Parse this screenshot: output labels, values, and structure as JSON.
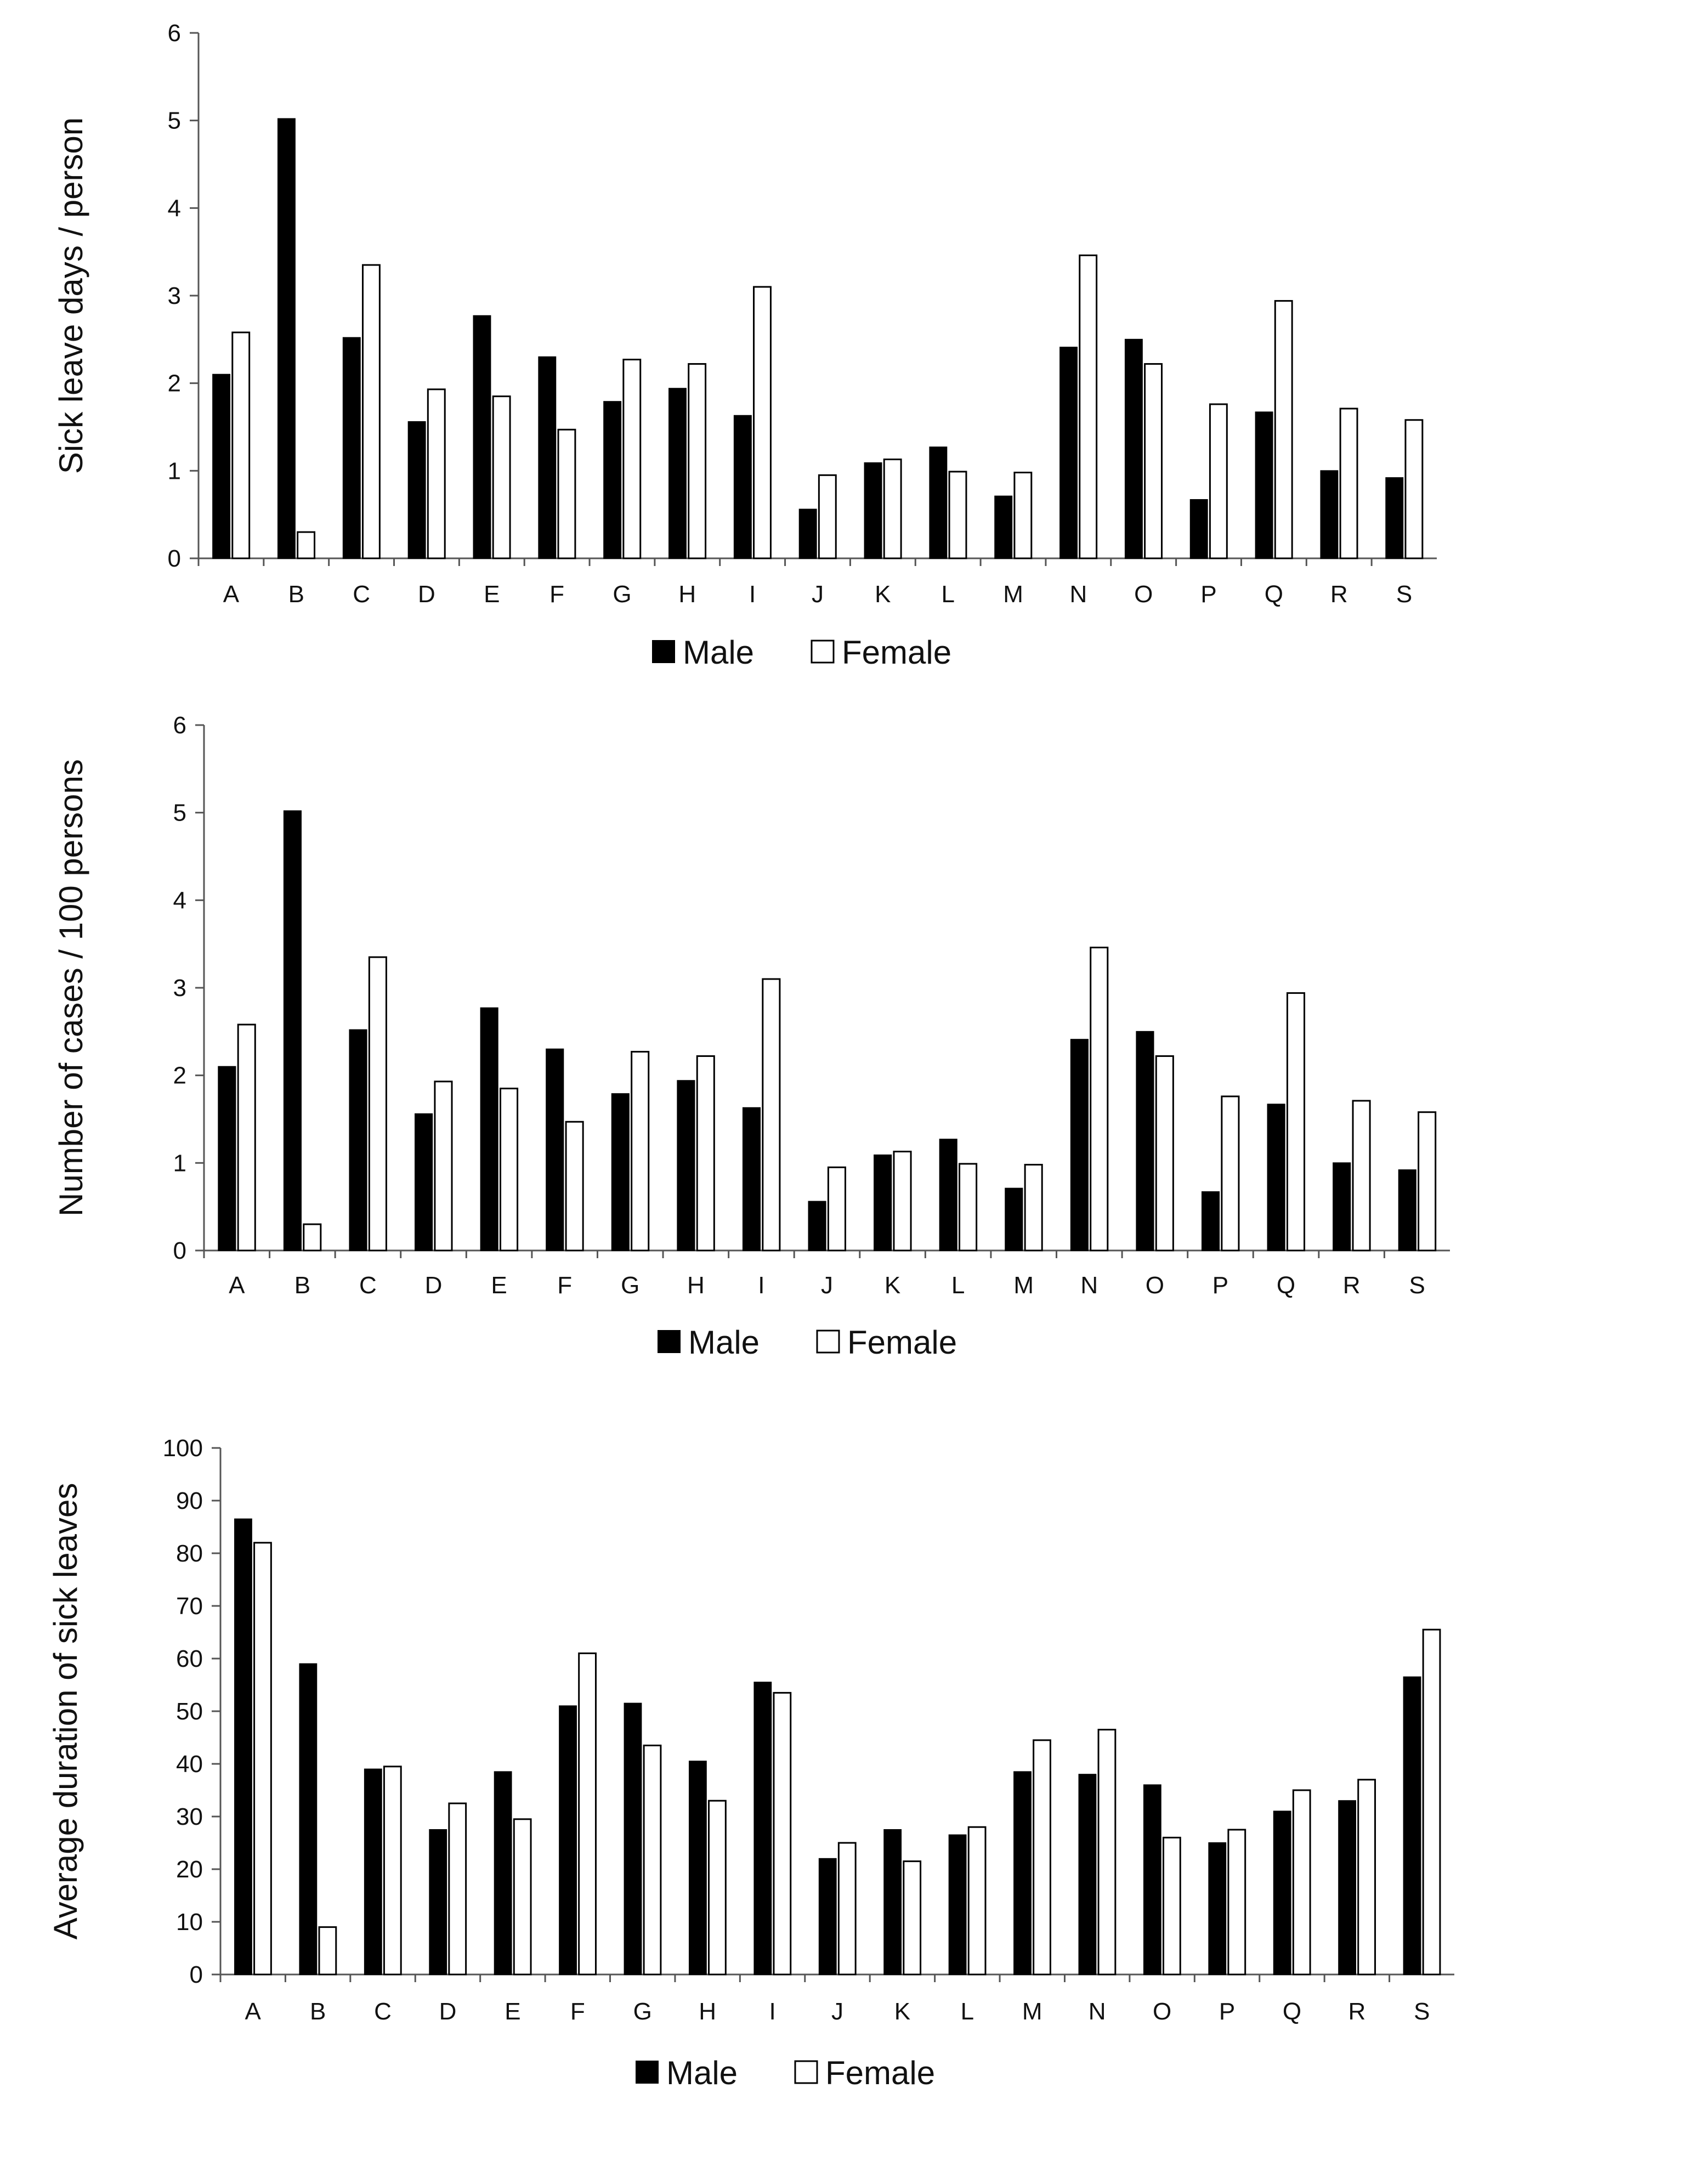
{
  "colors": {
    "male": "#000000",
    "female": "#ffffff",
    "outline": "#000000",
    "axis": "#555555"
  },
  "chart_data": [
    {
      "type": "bar",
      "title": "",
      "xlabel": "",
      "ylabel": "Sick leave days / person",
      "ylim": [
        0,
        6
      ],
      "yticks": [
        0,
        1,
        2,
        3,
        4,
        5,
        6
      ],
      "ytick_labels": [
        "0",
        "1",
        "2",
        "3",
        "4",
        "5",
        "6"
      ],
      "categories": [
        "A",
        "B",
        "C",
        "D",
        "E",
        "F",
        "G",
        "H",
        "I",
        "J",
        "K",
        "L",
        "M",
        "N",
        "O",
        "P",
        "Q",
        "R",
        "S"
      ],
      "series": [
        {
          "name": "Male",
          "values": [
            2.1,
            5.02,
            2.52,
            1.56,
            2.77,
            2.3,
            1.79,
            1.94,
            1.63,
            0.56,
            1.09,
            1.27,
            0.71,
            2.41,
            2.5,
            0.67,
            1.67,
            1.0,
            0.92
          ]
        },
        {
          "name": "Female",
          "values": [
            2.58,
            0.3,
            3.35,
            1.93,
            1.85,
            1.47,
            2.27,
            2.22,
            3.1,
            0.95,
            1.13,
            0.99,
            0.98,
            3.46,
            2.22,
            1.76,
            2.94,
            1.71,
            1.58
          ]
        }
      ],
      "legend": [
        "Male",
        "Female"
      ],
      "legend_position": "bottom-center"
    },
    {
      "type": "bar",
      "title": "",
      "xlabel": "",
      "ylabel": "Number of cases / 100 persons",
      "ylim": [
        0,
        6
      ],
      "yticks": [
        0,
        1,
        2,
        3,
        4,
        5,
        6
      ],
      "ytick_labels": [
        "0",
        "1",
        "2",
        "3",
        "4",
        "5",
        "6"
      ],
      "categories": [
        "A",
        "B",
        "C",
        "D",
        "E",
        "F",
        "G",
        "H",
        "I",
        "J",
        "K",
        "L",
        "M",
        "N",
        "O",
        "P",
        "Q",
        "R",
        "S"
      ],
      "series": [
        {
          "name": "Male",
          "values": [
            2.1,
            5.02,
            2.52,
            1.56,
            2.77,
            2.3,
            1.79,
            1.94,
            1.63,
            0.56,
            1.09,
            1.27,
            0.71,
            2.41,
            2.5,
            0.67,
            1.67,
            1.0,
            0.92
          ]
        },
        {
          "name": "Female",
          "values": [
            2.58,
            0.3,
            3.35,
            1.93,
            1.85,
            1.47,
            2.27,
            2.22,
            3.1,
            0.95,
            1.13,
            0.99,
            0.98,
            3.46,
            2.22,
            1.76,
            2.94,
            1.71,
            1.58
          ]
        }
      ],
      "legend": [
        "Male",
        "Female"
      ],
      "legend_position": "bottom-center"
    },
    {
      "type": "bar",
      "title": "",
      "xlabel": "",
      "ylabel": "Average duration of sick leaves",
      "ylim": [
        0,
        100
      ],
      "yticks": [
        0,
        10,
        20,
        30,
        40,
        50,
        60,
        70,
        80,
        90,
        100
      ],
      "ytick_labels": [
        "0",
        "10",
        "20",
        "30",
        "40",
        "50",
        "60",
        "70",
        "80",
        "90",
        "100"
      ],
      "categories": [
        "A",
        "B",
        "C",
        "D",
        "E",
        "F",
        "G",
        "H",
        "I",
        "J",
        "K",
        "L",
        "M",
        "N",
        "O",
        "P",
        "Q",
        "R",
        "S"
      ],
      "series": [
        {
          "name": "Male",
          "values": [
            86.5,
            59,
            39,
            27.5,
            38.5,
            51,
            51.5,
            40.5,
            55.5,
            22,
            27.5,
            26.5,
            38.5,
            38,
            36,
            25,
            31,
            33,
            56.5
          ]
        },
        {
          "name": "Female",
          "values": [
            82,
            9,
            39.5,
            32.5,
            29.5,
            61,
            43.5,
            33,
            53.5,
            25,
            21.5,
            28,
            44.5,
            46.5,
            26,
            27.5,
            35,
            37,
            65.5
          ]
        }
      ],
      "legend": [
        "Male",
        "Female"
      ],
      "legend_position": "bottom-center"
    }
  ]
}
